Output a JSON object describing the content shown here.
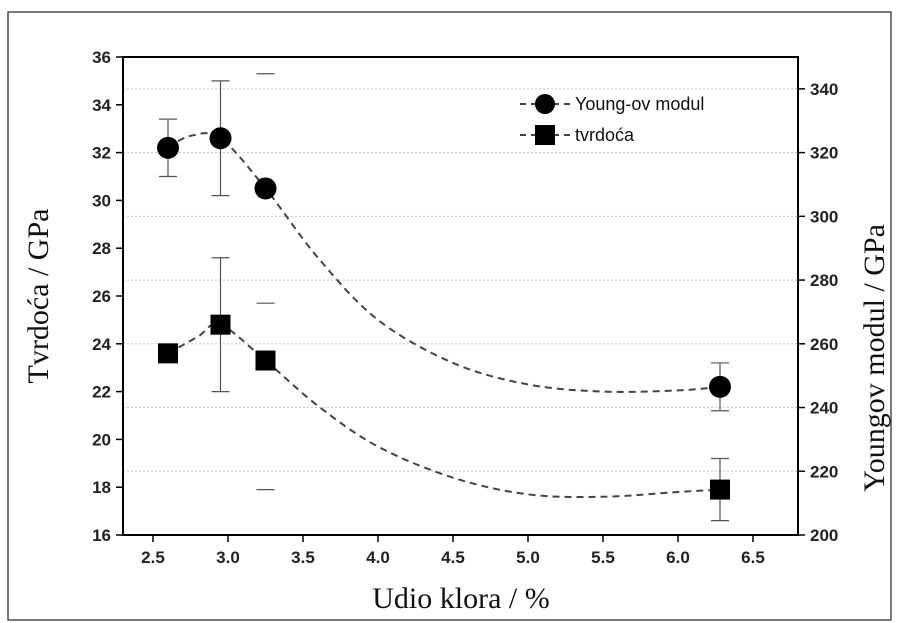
{
  "chart_data": {
    "type": "scatter",
    "xlabel": "Udio klora / %",
    "ylabel_left": "Tvrdoća / GPa",
    "ylabel_right": "Youngov modul / GPa",
    "xlim": [
      2.3,
      6.8
    ],
    "ylim_left": [
      16,
      36
    ],
    "ylim_right": [
      200,
      350
    ],
    "x_ticks": [
      "2.5",
      "3.0",
      "3.5",
      "4.0",
      "4.5",
      "5.0",
      "5.5",
      "6.0",
      "6.5"
    ],
    "y_left_ticks": [
      "16",
      "18",
      "20",
      "22",
      "24",
      "26",
      "28",
      "30",
      "32",
      "34",
      "36"
    ],
    "y_right_ticks": [
      "200",
      "220",
      "240",
      "260",
      "280",
      "300",
      "320",
      "340"
    ],
    "grid": "horizontal dotted",
    "legend_position": "top-right",
    "series": [
      {
        "name": "Young-ov modul",
        "axis": "left",
        "marker": "circle",
        "x": [
          2.6,
          2.95,
          3.25,
          6.28
        ],
        "y": [
          32.2,
          32.6,
          30.5,
          22.2
        ],
        "err": [
          1.2,
          2.4,
          null,
          1.0
        ],
        "fit_x": [
          2.6,
          2.75,
          2.95,
          3.25,
          3.6,
          4.0,
          4.5,
          5.0,
          5.5,
          6.0,
          6.28
        ],
        "fit_y": [
          32.2,
          32.7,
          32.6,
          30.5,
          27.6,
          25.0,
          23.2,
          22.3,
          22.0,
          22.05,
          22.2
        ]
      },
      {
        "name": "tvrdoća",
        "axis": "left",
        "marker": "square",
        "x": [
          2.6,
          2.95,
          3.25,
          6.28
        ],
        "y": [
          23.6,
          24.8,
          23.3,
          17.9
        ],
        "err": [
          0.3,
          2.8,
          null,
          1.3
        ],
        "fit_x": [
          2.6,
          2.8,
          2.95,
          3.25,
          3.6,
          4.0,
          4.5,
          5.0,
          5.5,
          6.0,
          6.28
        ],
        "fit_y": [
          23.6,
          24.3,
          24.8,
          23.3,
          21.4,
          19.7,
          18.4,
          17.7,
          17.6,
          17.8,
          17.9
        ]
      }
    ],
    "unpaired_caps": [
      {
        "x": 3.25,
        "y": 35.3
      },
      {
        "x": 3.25,
        "y": 25.7
      },
      {
        "x": 3.25,
        "y": 17.9
      }
    ]
  }
}
